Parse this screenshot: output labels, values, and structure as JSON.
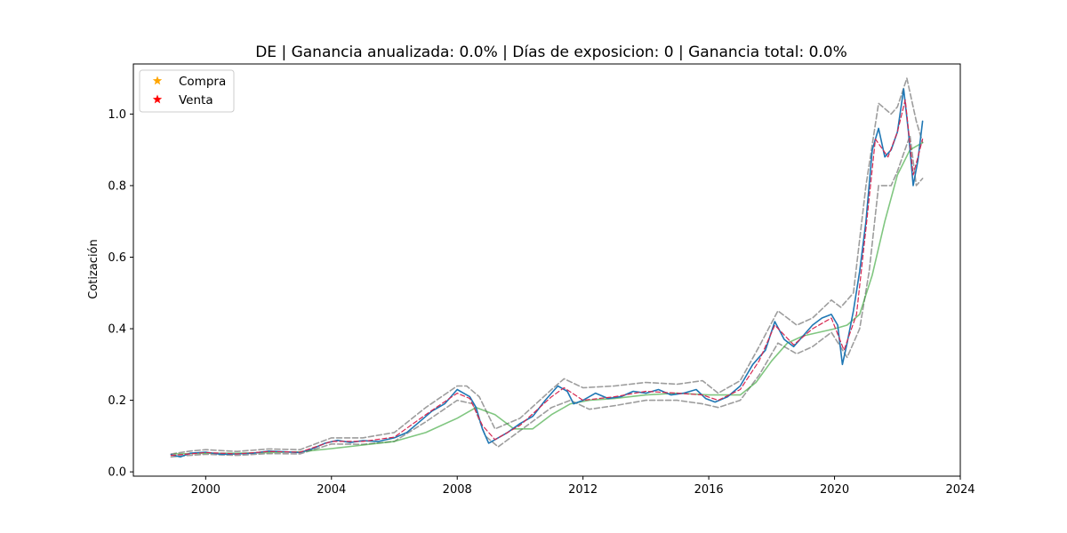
{
  "chart_data": {
    "type": "line",
    "title": "DE | Ganancia anualizada:   0.0% | Días de exposicion:      0 | Ganancia total:   0.0%",
    "xlabel": "",
    "ylabel": "Cotización",
    "xlim": [
      1997.7,
      2024.0
    ],
    "ylim": [
      -0.012,
      1.14
    ],
    "x_ticks": [
      2000,
      2004,
      2008,
      2012,
      2016,
      2020,
      2024
    ],
    "y_ticks": [
      0.0,
      0.2,
      0.4,
      0.6,
      0.8,
      1.0
    ],
    "grid": false,
    "legend": {
      "placement": "upper-left",
      "entries": [
        {
          "label": "Compra",
          "marker": "star",
          "color": "#ffa500"
        },
        {
          "label": "Venta",
          "marker": "star",
          "color": "#ff0000"
        }
      ]
    },
    "series": [
      {
        "role": "price",
        "color": "#1f77b4",
        "style": "solid",
        "x": [
          1998.9,
          1999.2,
          1999.5,
          2000.0,
          2000.5,
          2001.0,
          2001.5,
          2002.0,
          2002.5,
          2003.0,
          2003.4,
          2003.8,
          2004.2,
          2004.6,
          2005.0,
          2005.5,
          2006.0,
          2006.4,
          2006.8,
          2007.2,
          2007.6,
          2008.0,
          2008.2,
          2008.4,
          2008.6,
          2008.8,
          2009.0,
          2009.3,
          2009.6,
          2010.0,
          2010.4,
          2010.8,
          2011.2,
          2011.5,
          2011.7,
          2012.0,
          2012.4,
          2012.8,
          2013.2,
          2013.6,
          2014.0,
          2014.4,
          2014.8,
          2015.2,
          2015.6,
          2015.9,
          2016.2,
          2016.6,
          2017.0,
          2017.4,
          2017.8,
          2018.1,
          2018.4,
          2018.7,
          2019.0,
          2019.3,
          2019.6,
          2019.9,
          2020.1,
          2020.25,
          2020.4,
          2020.6,
          2020.8,
          2021.0,
          2021.2,
          2021.4,
          2021.6,
          2021.8,
          2022.0,
          2022.2,
          2022.35,
          2022.5,
          2022.65,
          2022.8
        ],
        "y": [
          0.048,
          0.042,
          0.052,
          0.055,
          0.049,
          0.05,
          0.052,
          0.058,
          0.056,
          0.054,
          0.065,
          0.08,
          0.088,
          0.082,
          0.087,
          0.085,
          0.095,
          0.11,
          0.14,
          0.17,
          0.19,
          0.23,
          0.22,
          0.21,
          0.18,
          0.12,
          0.08,
          0.095,
          0.11,
          0.135,
          0.155,
          0.2,
          0.24,
          0.225,
          0.19,
          0.2,
          0.22,
          0.205,
          0.21,
          0.225,
          0.22,
          0.23,
          0.215,
          0.22,
          0.23,
          0.205,
          0.195,
          0.21,
          0.24,
          0.3,
          0.34,
          0.42,
          0.37,
          0.35,
          0.38,
          0.41,
          0.43,
          0.44,
          0.41,
          0.3,
          0.36,
          0.45,
          0.56,
          0.7,
          0.9,
          0.96,
          0.88,
          0.9,
          0.95,
          1.07,
          0.95,
          0.8,
          0.87,
          0.98
        ]
      },
      {
        "role": "short-moving-average",
        "color": "#d62750",
        "style": "dashed",
        "x": [
          1998.9,
          1999.5,
          2000.0,
          2001.0,
          2002.0,
          2003.0,
          2004.0,
          2005.0,
          2006.0,
          2007.0,
          2008.0,
          2008.4,
          2008.8,
          2009.2,
          2010.0,
          2011.0,
          2011.4,
          2012.0,
          2013.0,
          2014.0,
          2015.0,
          2015.8,
          2016.3,
          2017.0,
          2017.6,
          2018.1,
          2018.7,
          2019.3,
          2019.9,
          2020.3,
          2020.7,
          2021.0,
          2021.3,
          2021.7,
          2022.0,
          2022.25,
          2022.5,
          2022.8
        ],
        "y": [
          0.046,
          0.05,
          0.054,
          0.05,
          0.057,
          0.055,
          0.085,
          0.085,
          0.097,
          0.16,
          0.22,
          0.205,
          0.13,
          0.09,
          0.13,
          0.21,
          0.235,
          0.2,
          0.21,
          0.225,
          0.22,
          0.215,
          0.2,
          0.23,
          0.31,
          0.41,
          0.355,
          0.4,
          0.43,
          0.34,
          0.44,
          0.68,
          0.93,
          0.88,
          0.95,
          1.04,
          0.83,
          0.93
        ]
      },
      {
        "role": "upper-band",
        "color": "#8c8c8c",
        "style": "dashed",
        "x": [
          1998.9,
          1999.5,
          2000.0,
          2001.0,
          2002.0,
          2003.0,
          2004.0,
          2005.0,
          2006.0,
          2007.0,
          2008.0,
          2008.3,
          2008.7,
          2009.2,
          2010.0,
          2011.0,
          2011.4,
          2012.0,
          2013.0,
          2014.0,
          2015.0,
          2015.8,
          2016.3,
          2017.0,
          2017.6,
          2018.2,
          2018.8,
          2019.3,
          2019.9,
          2020.2,
          2020.6,
          2021.0,
          2021.4,
          2021.8,
          2022.0,
          2022.3,
          2022.6,
          2022.8
        ],
        "y": [
          0.05,
          0.058,
          0.062,
          0.057,
          0.064,
          0.062,
          0.095,
          0.095,
          0.11,
          0.18,
          0.24,
          0.24,
          0.21,
          0.12,
          0.15,
          0.23,
          0.26,
          0.235,
          0.24,
          0.25,
          0.245,
          0.255,
          0.22,
          0.255,
          0.35,
          0.45,
          0.41,
          0.43,
          0.48,
          0.46,
          0.5,
          0.8,
          1.03,
          1.0,
          1.02,
          1.1,
          0.98,
          0.92
        ]
      },
      {
        "role": "lower-band",
        "color": "#8c8c8c",
        "style": "dashed",
        "x": [
          1998.9,
          1999.5,
          2000.0,
          2001.0,
          2002.0,
          2003.0,
          2004.0,
          2005.0,
          2006.0,
          2007.0,
          2008.0,
          2008.5,
          2008.9,
          2009.3,
          2010.0,
          2011.0,
          2011.6,
          2012.2,
          2013.0,
          2014.0,
          2015.0,
          2015.8,
          2016.3,
          2017.0,
          2017.6,
          2018.2,
          2018.8,
          2019.3,
          2019.9,
          2020.4,
          2020.8,
          2021.1,
          2021.4,
          2021.8,
          2022.0,
          2022.4,
          2022.6,
          2022.8
        ],
        "y": [
          0.042,
          0.046,
          0.049,
          0.046,
          0.051,
          0.05,
          0.078,
          0.077,
          0.085,
          0.14,
          0.2,
          0.19,
          0.1,
          0.07,
          0.115,
          0.18,
          0.2,
          0.175,
          0.185,
          0.2,
          0.2,
          0.19,
          0.18,
          0.2,
          0.27,
          0.36,
          0.33,
          0.35,
          0.39,
          0.32,
          0.4,
          0.56,
          0.8,
          0.8,
          0.84,
          0.94,
          0.8,
          0.82
        ]
      },
      {
        "role": "long-moving-average",
        "color": "#2ca02c",
        "style": "solid",
        "opacity": 0.6,
        "x": [
          1999.0,
          2000.0,
          2001.0,
          2002.0,
          2003.0,
          2004.0,
          2005.0,
          2006.0,
          2007.0,
          2008.0,
          2008.6,
          2009.2,
          2009.8,
          2010.4,
          2011.0,
          2011.6,
          2012.2,
          2013.0,
          2014.0,
          2015.0,
          2016.0,
          2017.0,
          2017.5,
          2018.0,
          2018.5,
          2019.0,
          2019.5,
          2020.0,
          2020.4,
          2020.8,
          2021.2,
          2021.6,
          2022.0,
          2022.4,
          2022.8
        ],
        "y": [
          0.05,
          0.052,
          0.052,
          0.054,
          0.056,
          0.065,
          0.075,
          0.085,
          0.11,
          0.15,
          0.18,
          0.16,
          0.12,
          0.12,
          0.16,
          0.19,
          0.2,
          0.205,
          0.215,
          0.22,
          0.215,
          0.215,
          0.25,
          0.31,
          0.36,
          0.38,
          0.39,
          0.4,
          0.41,
          0.44,
          0.55,
          0.7,
          0.83,
          0.9,
          0.92
        ]
      }
    ]
  }
}
